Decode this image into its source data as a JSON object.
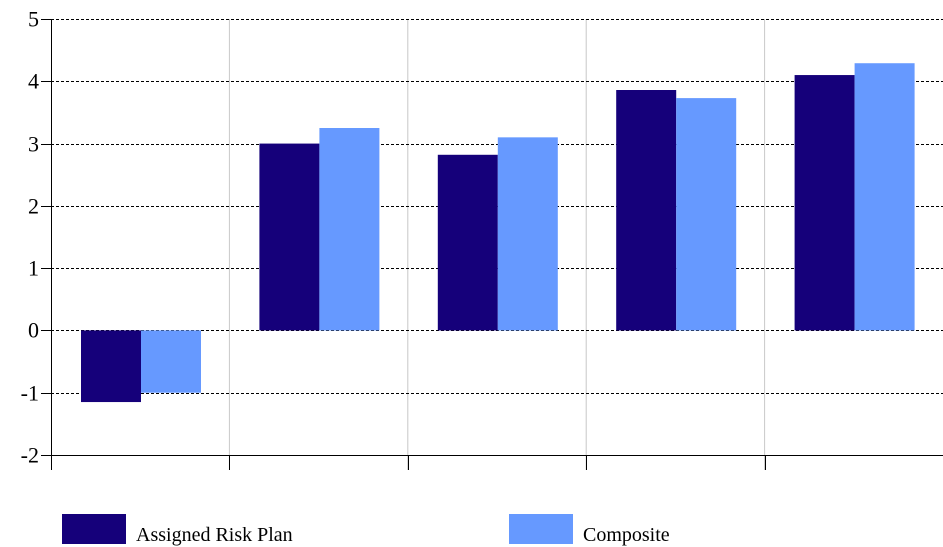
{
  "chart_data": {
    "type": "bar",
    "categories": [
      "",
      "",
      "",
      "",
      ""
    ],
    "series": [
      {
        "name": "Assigned Risk Plan",
        "color": "#15007a",
        "values": [
          -1.15,
          3.0,
          2.82,
          3.86,
          4.1
        ]
      },
      {
        "name": "Composite",
        "color": "#6699ff",
        "values": [
          -1.0,
          3.25,
          3.1,
          3.73,
          4.29
        ]
      }
    ],
    "title": "",
    "xlabel": "",
    "ylabel": "",
    "ylim": [
      -2,
      5
    ],
    "yticks": [
      "-2",
      "-1",
      "0",
      "1",
      "2",
      "3",
      "4",
      "5"
    ],
    "grid": {
      "horizontal": "dashed",
      "vertical": "solid"
    },
    "legend_position": "bottom"
  }
}
